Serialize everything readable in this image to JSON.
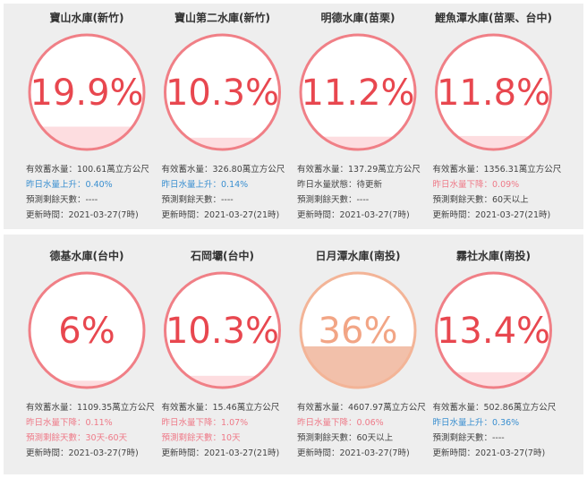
{
  "reservoirs": [
    {
      "name": "寶山水庫(新竹)",
      "percent": {
        "value": 19.9,
        "label": "19.9%"
      },
      "ring_color": "#f07f86",
      "text_color": "#e8474f",
      "water_color": "#fddde0",
      "lines": [
        {
          "text": "有效蓄水量：100.61萬立方公尺",
          "color": "#444444"
        },
        {
          "text": "昨日水量上升：0.40%",
          "color": "#3a8fd0"
        },
        {
          "text": "預測剩餘天數：----",
          "color": "#444444"
        },
        {
          "text": "更新時間：2021-03-27(7時)",
          "color": "#444444"
        }
      ]
    },
    {
      "name": "寶山第二水庫(新竹)",
      "percent": {
        "value": 10.3,
        "label": "10.3%"
      },
      "ring_color": "#f07f86",
      "text_color": "#e8474f",
      "water_color": "#fddde0",
      "lines": [
        {
          "text": "有效蓄水量：326.80萬立方公尺",
          "color": "#444444"
        },
        {
          "text": "昨日水量上升：0.14%",
          "color": "#3a8fd0"
        },
        {
          "text": "預測剩餘天數：----",
          "color": "#444444"
        },
        {
          "text": "更新時間：2021-03-27(21時)",
          "color": "#444444"
        }
      ]
    },
    {
      "name": "明德水庫(苗栗)",
      "percent": {
        "value": 11.2,
        "label": "11.2%"
      },
      "ring_color": "#f07f86",
      "text_color": "#e8474f",
      "water_color": "#fddde0",
      "lines": [
        {
          "text": "有效蓄水量：137.29萬立方公尺",
          "color": "#444444"
        },
        {
          "text": "昨日水量狀態：待更新",
          "color": "#444444"
        },
        {
          "text": "預測剩餘天數：----",
          "color": "#444444"
        },
        {
          "text": "更新時間：2021-03-27(7時)",
          "color": "#444444"
        }
      ]
    },
    {
      "name": "鯉魚潭水庫(苗栗、台中)",
      "percent": {
        "value": 11.8,
        "label": "11.8%"
      },
      "ring_color": "#f07f86",
      "text_color": "#e8474f",
      "water_color": "#fddde0",
      "lines": [
        {
          "text": "有效蓄水量：1356.31萬立方公尺",
          "color": "#444444"
        },
        {
          "text": "昨日水量下降：0.09%",
          "color": "#ee7a88"
        },
        {
          "text": "預測剩餘天數：60天以上",
          "color": "#444444"
        },
        {
          "text": "更新時間：2021-03-27(21時)",
          "color": "#444444"
        }
      ]
    },
    {
      "name": "德基水庫(台中)",
      "percent": {
        "value": 6,
        "label": "6%"
      },
      "ring_color": "#f07f86",
      "text_color": "#e8474f",
      "water_color": "#fddde0",
      "lines": [
        {
          "text": "有效蓄水量：1109.35萬立方公尺",
          "color": "#444444"
        },
        {
          "text": "昨日水量下降：0.11%",
          "color": "#ee7a88"
        },
        {
          "text": "預測剩餘天數：30天-60天",
          "color": "#ee7a88"
        },
        {
          "text": "更新時間：2021-03-27(7時)",
          "color": "#444444"
        }
      ]
    },
    {
      "name": "石岡壩(台中)",
      "percent": {
        "value": 10.3,
        "label": "10.3%"
      },
      "ring_color": "#f07f86",
      "text_color": "#e8474f",
      "water_color": "#fddde0",
      "lines": [
        {
          "text": "有效蓄水量：15.46萬立方公尺",
          "color": "#444444"
        },
        {
          "text": "昨日水量下降：1.07%",
          "color": "#ee7a88"
        },
        {
          "text": "預測剩餘天數：10天",
          "color": "#ee7a88"
        },
        {
          "text": "更新時間：2021-03-27(21時)",
          "color": "#444444"
        }
      ]
    },
    {
      "name": "日月潭水庫(南投)",
      "percent": {
        "value": 36,
        "label": "36%"
      },
      "ring_color": "#f3b497",
      "text_color": "#f2a585",
      "water_color": "#f2c0aa",
      "lines": [
        {
          "text": "有效蓄水量：4607.97萬立方公尺",
          "color": "#444444"
        },
        {
          "text": "昨日水量下降：0.06%",
          "color": "#ee7a88"
        },
        {
          "text": "預測剩餘天數：60天以上",
          "color": "#444444"
        },
        {
          "text": "更新時間：2021-03-27(7時)",
          "color": "#444444"
        }
      ]
    },
    {
      "name": "霧社水庫(南投)",
      "percent": {
        "value": 13.4,
        "label": "13.4%"
      },
      "ring_color": "#f07f86",
      "text_color": "#e8474f",
      "water_color": "#fddde0",
      "lines": [
        {
          "text": "有效蓄水量：502.86萬立方公尺",
          "color": "#444444"
        },
        {
          "text": "昨日水量上升：0.36%",
          "color": "#3a8fd0"
        },
        {
          "text": "預測剩餘天數：----",
          "color": "#444444"
        },
        {
          "text": "更新時間：2021-03-27(7時)",
          "color": "#444444"
        }
      ]
    }
  ]
}
